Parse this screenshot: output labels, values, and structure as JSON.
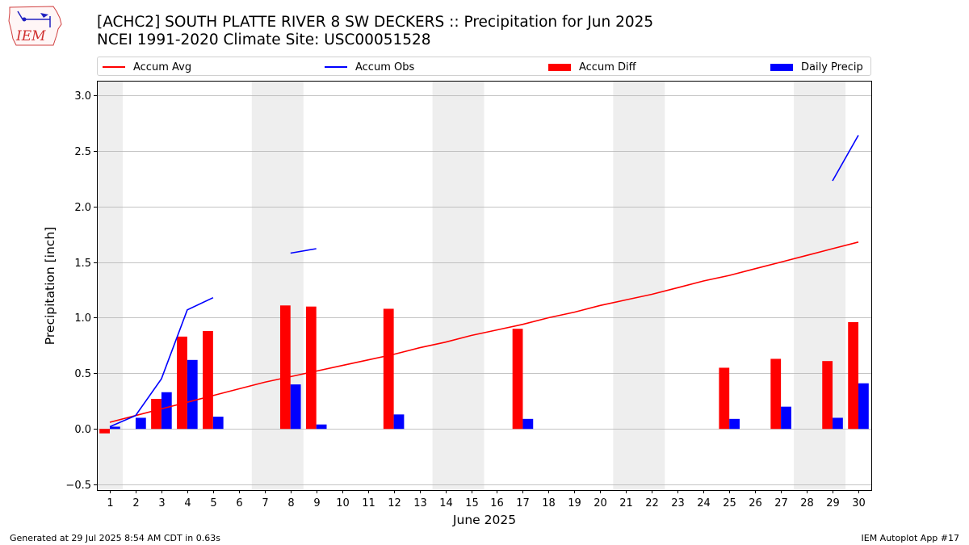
{
  "header": {
    "title_line1": "[ACHC2] SOUTH PLATTE RIVER 8 SW DECKERS :: Precipitation for Jun 2025",
    "title_line2": "NCEI 1991-2020 Climate Site: USC00051528",
    "logo_text": "IEM"
  },
  "legend": [
    {
      "label": "Accum Avg",
      "kind": "line",
      "color": "#ff0000"
    },
    {
      "label": "Accum Obs",
      "kind": "line",
      "color": "#0000ff"
    },
    {
      "label": "Accum Diff",
      "kind": "box",
      "color": "#ff0000"
    },
    {
      "label": "Daily Precip",
      "kind": "box",
      "color": "#0000ff"
    }
  ],
  "footer": {
    "generated": "Generated at 29 Jul 2025 8:54 AM CDT in 0.63s",
    "app": "IEM Autoplot App #17"
  },
  "chart_data": {
    "type": "bar",
    "title": "[ACHC2] SOUTH PLATTE RIVER 8 SW DECKERS :: Precipitation for Jun 2025",
    "xlabel": "June 2025",
    "ylabel": "Precipitation [inch]",
    "xlim": [
      0.5,
      30.5
    ],
    "ylim": [
      -0.55,
      3.13
    ],
    "yticks": [
      -0.5,
      0.0,
      0.5,
      1.0,
      1.5,
      2.0,
      2.5,
      3.0
    ],
    "ytick_labels": [
      "−0.5",
      "0.0",
      "0.5",
      "1.0",
      "1.5",
      "2.0",
      "2.5",
      "3.0"
    ],
    "categories": [
      1,
      2,
      3,
      4,
      5,
      6,
      7,
      8,
      9,
      10,
      11,
      12,
      13,
      14,
      15,
      16,
      17,
      18,
      19,
      20,
      21,
      22,
      23,
      24,
      25,
      26,
      27,
      28,
      29,
      30
    ],
    "category_labels": [
      "1",
      "2",
      "3",
      "4",
      "5",
      "6",
      "7",
      "8",
      "9",
      "10",
      "11",
      "12",
      "13",
      "14",
      "15",
      "16",
      "17",
      "18",
      "19",
      "20",
      "21",
      "22",
      "23",
      "24",
      "25",
      "26",
      "27",
      "28",
      "29",
      "30"
    ],
    "weekend_bands": [
      [
        0.5,
        1.5
      ],
      [
        6.5,
        8.5
      ],
      [
        13.5,
        15.5
      ],
      [
        20.5,
        22.5
      ],
      [
        27.5,
        29.5
      ]
    ],
    "grid": true,
    "colors": {
      "avg": "#ff0000",
      "obs": "#0000ff",
      "diff": "#ff0000",
      "daily": "#0000ff",
      "band": "#eeeeee",
      "grid": "#b0b0b0"
    },
    "series": [
      {
        "name": "Accum Avg",
        "type": "line",
        "values": [
          0.06,
          0.12,
          0.18,
          0.24,
          0.3,
          0.36,
          0.42,
          0.47,
          0.52,
          0.57,
          0.62,
          0.67,
          0.73,
          0.78,
          0.84,
          0.89,
          0.94,
          1.0,
          1.05,
          1.11,
          1.16,
          1.21,
          1.27,
          1.33,
          1.38,
          1.44,
          1.5,
          1.56,
          1.62,
          1.68
        ]
      },
      {
        "name": "Accum Obs",
        "type": "line",
        "values": [
          0.02,
          0.12,
          0.45,
          1.07,
          1.18,
          null,
          null,
          1.58,
          1.62,
          null,
          null,
          null,
          null,
          null,
          null,
          null,
          null,
          null,
          null,
          null,
          null,
          null,
          null,
          null,
          null,
          null,
          null,
          null,
          2.23,
          2.64
        ]
      },
      {
        "name": "Accum Diff",
        "type": "bar",
        "values": [
          -0.04,
          0,
          0.27,
          0.83,
          0.88,
          0,
          0,
          1.11,
          1.1,
          0,
          0,
          1.08,
          0,
          0,
          0,
          0,
          0.9,
          0,
          0,
          0,
          0,
          0,
          0,
          0,
          0.55,
          0,
          0.63,
          0,
          0.61,
          0.96
        ]
      },
      {
        "name": "Daily Precip",
        "type": "bar",
        "values": [
          0.02,
          0.1,
          0.33,
          0.62,
          0.11,
          0,
          0,
          0.4,
          0.04,
          0,
          0,
          0.13,
          0,
          0,
          0,
          0,
          0.09,
          0,
          0,
          0,
          0,
          0,
          0,
          0,
          0.09,
          0,
          0.2,
          0,
          0.1,
          0.41
        ]
      }
    ]
  }
}
